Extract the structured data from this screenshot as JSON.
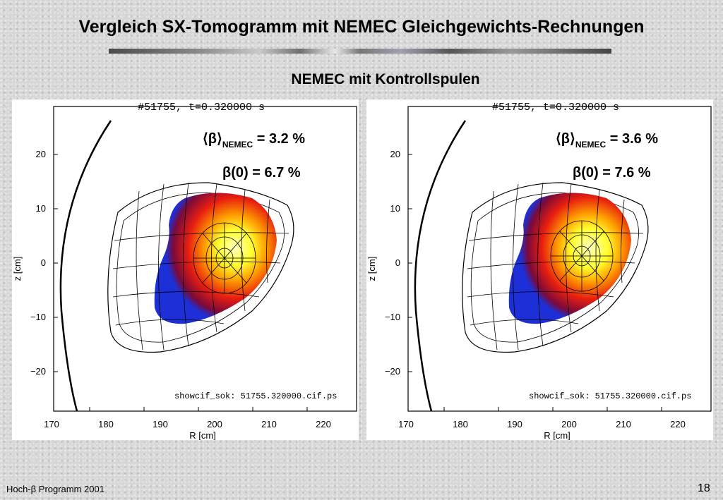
{
  "slide": {
    "title": "Vergleich SX-Tomogramm mit NEMEC Gleichgewichts-Rechnungen",
    "subtitle": "NEMEC mit Kontrollspulen",
    "footer_left": "Hoch-β Programm 2001",
    "page_number": "18"
  },
  "panels": [
    {
      "header": "#51755, t=0.320000 s",
      "beta_avg_label": "⟨β⟩",
      "beta_avg_sub": "NEMEC",
      "beta_avg_value": " = 3.2 %",
      "beta0": "β(0) = 6.7 %",
      "file_label": "showcif_sok: 51755.320000.cif.ps",
      "xlabel": "R [cm]",
      "ylabel": "z [cm]",
      "xticks": [
        "170",
        "180",
        "190",
        "200",
        "210",
        "220"
      ],
      "yticks": [
        "20",
        "10",
        "0",
        "−10",
        "−20"
      ]
    },
    {
      "header": "#51755, t=0.320000 s",
      "beta_avg_label": "⟨β⟩",
      "beta_avg_sub": "NEMEC",
      "beta_avg_value": " = 3.6 %",
      "beta0": "β(0) = 7.6 %",
      "file_label": "showcif_sok: 51755.320000.cif.ps",
      "xlabel": "R [cm]",
      "ylabel": "z [cm]",
      "xticks": [
        "170",
        "180",
        "190",
        "200",
        "210",
        "220"
      ],
      "yticks": [
        "20",
        "10",
        "0",
        "−10",
        "−20"
      ]
    }
  ],
  "colors": {
    "outer": "#1d2fd6",
    "mid1": "#7a0a3a",
    "mid2": "#e81e10",
    "mid3": "#ff9a00",
    "core": "#ffff40"
  }
}
